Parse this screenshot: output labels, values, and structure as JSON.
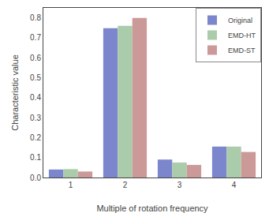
{
  "chart_data": {
    "type": "bar",
    "categories": [
      1,
      2,
      3,
      4
    ],
    "series": [
      {
        "name": "Original",
        "color": "#7b86cc",
        "values": [
          0.04,
          0.748,
          0.09,
          0.155
        ]
      },
      {
        "name": "EMD-HT",
        "color": "#aaccaa",
        "values": [
          0.042,
          0.76,
          0.075,
          0.155
        ]
      },
      {
        "name": "EMD-ST",
        "color": "#cc9999",
        "values": [
          0.03,
          0.8,
          0.063,
          0.128
        ]
      }
    ],
    "xlabel": "Multiple of rotation frequency",
    "ylabel": "Characteristic value",
    "ylim": [
      0,
      0.85
    ],
    "yticks": [
      {
        "value": 0.0,
        "label": "0.0"
      },
      0.1,
      0.2,
      0.3,
      0.4,
      0.5,
      0.6,
      0.7,
      0.8
    ],
    "grid": false,
    "legend": "upper right"
  }
}
